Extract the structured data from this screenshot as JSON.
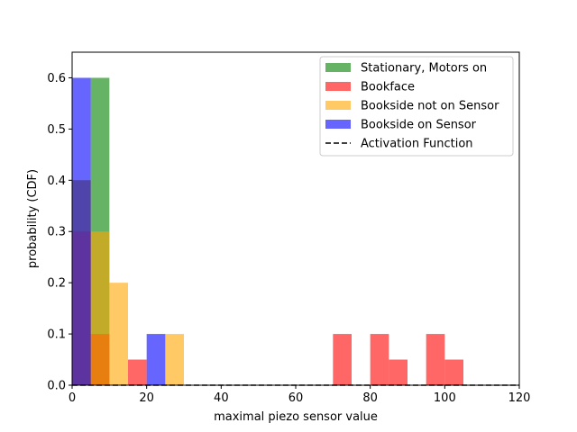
{
  "chart_data": {
    "type": "bar",
    "xlabel": "maximal piezo sensor value",
    "ylabel": "probability (CDF)",
    "xlim": [
      0,
      120
    ],
    "ylim": [
      0,
      0.65
    ],
    "xticks": [
      "0",
      "20",
      "40",
      "60",
      "80",
      "100",
      "120"
    ],
    "yticks": [
      "0.0",
      "0.1",
      "0.2",
      "0.3",
      "0.4",
      "0.5",
      "0.6"
    ],
    "bin_width": 5,
    "legend_position": "top-right",
    "series": [
      {
        "name": "Stationary, Motors on",
        "color": "#008000",
        "bins": [
          {
            "x": 0,
            "value": 0.4
          },
          {
            "x": 5,
            "value": 0.6
          }
        ]
      },
      {
        "name": "Bookface",
        "color": "#ff0000",
        "bins": [
          {
            "x": 0,
            "value": 0.3
          },
          {
            "x": 5,
            "value": 0.1
          },
          {
            "x": 15,
            "value": 0.05
          },
          {
            "x": 70,
            "value": 0.1
          },
          {
            "x": 80,
            "value": 0.1
          },
          {
            "x": 85,
            "value": 0.05
          },
          {
            "x": 95,
            "value": 0.1
          },
          {
            "x": 100,
            "value": 0.05
          }
        ]
      },
      {
        "name": "Bookside not on Sensor",
        "color": "#ffa500",
        "bins": [
          {
            "x": 0,
            "value": 0.4
          },
          {
            "x": 5,
            "value": 0.3
          },
          {
            "x": 10,
            "value": 0.2
          },
          {
            "x": 25,
            "value": 0.1
          }
        ]
      },
      {
        "name": "Bookside on Sensor",
        "color": "#0000ff",
        "bins": [
          {
            "x": 0,
            "value": 0.6
          },
          {
            "x": 20,
            "value": 0.1
          }
        ]
      }
    ],
    "lines": [
      {
        "name": "Activation Function",
        "color": "#000000",
        "style": "dashed",
        "x": [
          0,
          120
        ],
        "y": [
          0,
          0
        ]
      }
    ]
  }
}
